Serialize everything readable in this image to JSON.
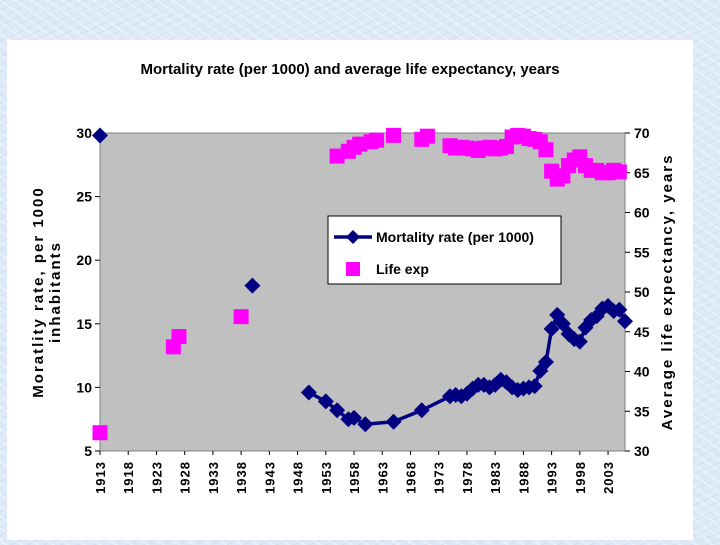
{
  "chart_data": {
    "type": "line",
    "title": "Mortality rate (per 1000) and average life expectancy, years",
    "ylabel_left": "Moratlity rate, per 1000 inhabitants",
    "ylabel_left_lines": [
      "Moratlity rate, per 1000",
      "inhabitants"
    ],
    "ylabel_right": "Average life expectancy, years",
    "xlabel": "",
    "xlim": [
      1913,
      2006
    ],
    "ylim_left": [
      5,
      30
    ],
    "ylim_right": [
      30,
      70
    ],
    "x_ticks": [
      "1913",
      "1918",
      "1923",
      "1928",
      "1933",
      "1938",
      "1943",
      "1948",
      "1953",
      "1958",
      "1963",
      "1968",
      "1973",
      "1978",
      "1983",
      "1988",
      "1993",
      "1998",
      "2003"
    ],
    "y_ticks_left": [
      "5",
      "10",
      "15",
      "20",
      "25",
      "30"
    ],
    "y_ticks_right": [
      "30",
      "35",
      "40",
      "45",
      "50",
      "55",
      "60",
      "65",
      "70"
    ],
    "grid": false,
    "legend_position": "center-right",
    "colors": {
      "plot_background": "#c0c0c0",
      "mortality": "#000080",
      "life_exp": "#ff00ff"
    },
    "series": [
      {
        "name": "Mortality rate (per 1000)",
        "axis": "left",
        "marker": "diamond",
        "connected_from": 1950,
        "points": [
          [
            1913,
            29.8
          ],
          [
            1940,
            18.0
          ],
          [
            1950,
            9.6
          ],
          [
            1953,
            8.9
          ],
          [
            1955,
            8.2
          ],
          [
            1957,
            7.5
          ],
          [
            1958,
            7.6
          ],
          [
            1960,
            7.1
          ],
          [
            1965,
            7.3
          ],
          [
            1970,
            8.2
          ],
          [
            1975,
            9.3
          ],
          [
            1976,
            9.4
          ],
          [
            1977,
            9.3
          ],
          [
            1978,
            9.5
          ],
          [
            1979,
            9.9
          ],
          [
            1980,
            10.2
          ],
          [
            1981,
            10.2
          ],
          [
            1982,
            10.0
          ],
          [
            1983,
            10.2
          ],
          [
            1984,
            10.6
          ],
          [
            1985,
            10.4
          ],
          [
            1986,
            10.0
          ],
          [
            1987,
            9.8
          ],
          [
            1988,
            9.9
          ],
          [
            1989,
            10.0
          ],
          [
            1990,
            10.1
          ],
          [
            1991,
            11.3
          ],
          [
            1992,
            12.0
          ],
          [
            1993,
            14.6
          ],
          [
            1994,
            15.7
          ],
          [
            1995,
            15.0
          ],
          [
            1996,
            14.2
          ],
          [
            1997,
            13.8
          ],
          [
            1998,
            13.6
          ],
          [
            1999,
            14.7
          ],
          [
            2000,
            15.3
          ],
          [
            2001,
            15.6
          ],
          [
            2002,
            16.2
          ],
          [
            2003,
            16.4
          ],
          [
            2004,
            16.0
          ],
          [
            2005,
            16.1
          ],
          [
            2006,
            15.2
          ]
        ]
      },
      {
        "name": "Life exp",
        "axis": "right",
        "marker": "square",
        "connected_from": null,
        "points": [
          [
            1913,
            32.3
          ],
          [
            1926,
            43.1
          ],
          [
            1927,
            44.4
          ],
          [
            1938,
            46.9
          ],
          [
            1955,
            67.1
          ],
          [
            1957,
            67.7
          ],
          [
            1958,
            68.2
          ],
          [
            1959,
            68.6
          ],
          [
            1961,
            68.9
          ],
          [
            1962,
            69.1
          ],
          [
            1965,
            69.7
          ],
          [
            1970,
            69.2
          ],
          [
            1971,
            69.6
          ],
          [
            1975,
            68.4
          ],
          [
            1976,
            68.1
          ],
          [
            1977,
            68.2
          ],
          [
            1978,
            68.1
          ],
          [
            1979,
            68.0
          ],
          [
            1980,
            67.8
          ],
          [
            1981,
            68.1
          ],
          [
            1982,
            68.2
          ],
          [
            1983,
            68.0
          ],
          [
            1984,
            68.1
          ],
          [
            1985,
            68.3
          ],
          [
            1986,
            69.5
          ],
          [
            1987,
            69.7
          ],
          [
            1988,
            69.6
          ],
          [
            1989,
            69.3
          ],
          [
            1990,
            69.2
          ],
          [
            1991,
            68.9
          ],
          [
            1992,
            67.9
          ],
          [
            1993,
            65.2
          ],
          [
            1994,
            64.2
          ],
          [
            1995,
            64.6
          ],
          [
            1996,
            65.9
          ],
          [
            1997,
            66.6
          ],
          [
            1998,
            67.0
          ],
          [
            1999,
            65.9
          ],
          [
            2000,
            65.3
          ],
          [
            2001,
            65.3
          ],
          [
            2002,
            65.0
          ],
          [
            2003,
            65.0
          ],
          [
            2004,
            65.3
          ],
          [
            2005,
            65.1
          ]
        ]
      }
    ]
  }
}
